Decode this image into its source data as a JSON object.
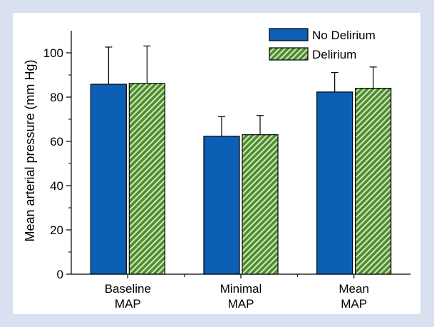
{
  "chart_data": {
    "type": "bar",
    "ylabel": "Mean arterial pressure (mm Hg)",
    "ylim": [
      0,
      110
    ],
    "yticks": [
      0,
      20,
      40,
      60,
      80,
      100
    ],
    "ytick_labels": [
      "0",
      "20",
      "40",
      "60",
      "80",
      "100"
    ],
    "grid": false,
    "legend_position": "top-right",
    "categories": [
      [
        "Baseline",
        "MAP"
      ],
      [
        "Minimal",
        "MAP"
      ],
      [
        "Mean",
        "MAP"
      ]
    ],
    "series": [
      {
        "name": "No Delirium",
        "color": "#0b5fb4",
        "pattern": "solid",
        "values": [
          85.8,
          62.3,
          82.3
        ],
        "error": [
          16.8,
          8.9,
          8.8
        ]
      },
      {
        "name": "Delirium",
        "color": "#4e8f2d",
        "pattern": "diagonal-hatch",
        "values": [
          86.2,
          63.0,
          84.0
        ],
        "error": [
          16.9,
          8.7,
          9.6
        ]
      }
    ]
  }
}
